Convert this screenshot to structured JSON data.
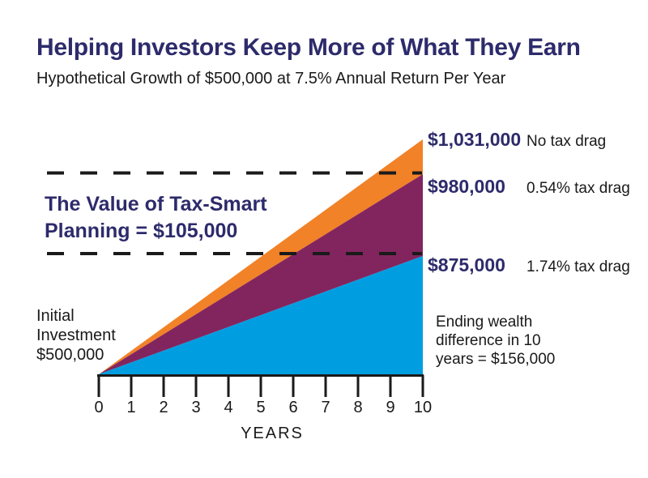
{
  "header": {
    "title": "Helping Investors Keep More of What They Earn",
    "subtitle": "Hypothetical Growth of $500,000 at 7.5% Annual Return Per Year"
  },
  "colors": {
    "navy_text": "#2d2b6b",
    "axis_black": "#1a1a1a",
    "background": "#ffffff"
  },
  "chart_data": {
    "type": "area",
    "title": "Helping Investors Keep More of What They Earn",
    "subtitle": "Hypothetical Growth of $500,000 at 7.5% Annual Return Per Year",
    "xlabel": "YEARS",
    "x_ticks": [
      "0",
      "1",
      "2",
      "3",
      "4",
      "5",
      "6",
      "7",
      "8",
      "9",
      "10"
    ],
    "x_range": [
      0,
      10
    ],
    "grid": false,
    "legend_position": "right-of-area-endpoints",
    "initial_value": 500000,
    "annual_return_pct": 7.5,
    "series": [
      {
        "name": "No tax drag",
        "tax_drag_pct": 0.0,
        "start_value": 500000,
        "end_value": 1031000,
        "end_label": "$1,031,000",
        "color": "#f18227"
      },
      {
        "name": "0.54% tax drag",
        "tax_drag_pct": 0.54,
        "start_value": 500000,
        "end_value": 980000,
        "end_label": "$980,000",
        "color": "#82255f"
      },
      {
        "name": "1.74% tax drag",
        "tax_drag_pct": 1.74,
        "start_value": 500000,
        "end_value": 875000,
        "end_label": "$875,000",
        "color": "#009ee0"
      }
    ],
    "annotations": {
      "value_callout": {
        "line1": "The Value of Tax-Smart",
        "line2": "Planning = $105,000",
        "value": 105000
      },
      "initial_investment": {
        "line1": "Initial",
        "line2": "Investment",
        "line3": "$500,000",
        "value": 500000
      },
      "ending_wealth": {
        "line1": "Ending wealth",
        "line2": "difference in 10",
        "line3": "years = $156,000",
        "value": 156000
      }
    }
  }
}
